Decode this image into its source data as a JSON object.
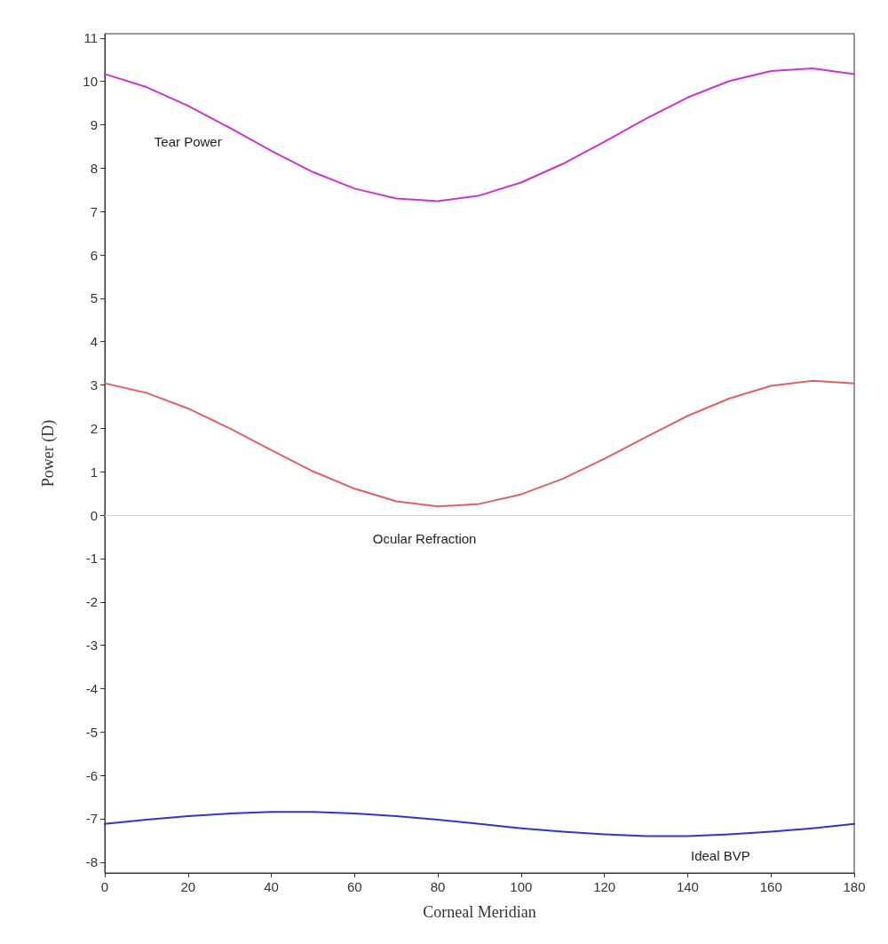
{
  "chart_data": {
    "type": "line",
    "xlabel": "Corneal Meridian",
    "ylabel": "Power (D)",
    "x": [
      0,
      10,
      20,
      30,
      40,
      50,
      60,
      70,
      80,
      90,
      100,
      110,
      120,
      130,
      140,
      150,
      160,
      170,
      180
    ],
    "series": [
      {
        "name": "Tear Power",
        "color": "#cc33cc",
        "values": [
          10.17,
          9.87,
          9.44,
          8.93,
          8.4,
          7.91,
          7.53,
          7.3,
          7.24,
          7.37,
          7.67,
          8.1,
          8.61,
          9.14,
          9.63,
          10.01,
          10.24,
          10.3,
          10.17
        ]
      },
      {
        "name": "Ocular Refraction",
        "color": "#e06060",
        "values": [
          3.04,
          2.82,
          2.46,
          2.0,
          1.5,
          1.01,
          0.61,
          0.32,
          0.2,
          0.26,
          0.48,
          0.84,
          1.3,
          1.8,
          2.29,
          2.69,
          2.98,
          3.1,
          3.04
        ]
      },
      {
        "name": "Ideal BVP",
        "color": "#3333cc",
        "values": [
          -7.12,
          -7.02,
          -6.94,
          -6.88,
          -6.84,
          -6.84,
          -6.88,
          -6.94,
          -7.02,
          -7.12,
          -7.22,
          -7.3,
          -7.36,
          -7.4,
          -7.4,
          -7.36,
          -7.3,
          -7.22,
          -7.12
        ]
      }
    ],
    "ref_lines": [
      {
        "axis": "y",
        "value": 0,
        "color": "#d0d0d0"
      }
    ],
    "xlim": [
      0,
      180
    ],
    "xticks": [
      0,
      20,
      40,
      60,
      80,
      100,
      120,
      140,
      160,
      180
    ],
    "ylim": [
      -8.25,
      11.1
    ],
    "yticks": [
      -8,
      -7,
      -6,
      -5,
      -4,
      -3,
      -2,
      -1,
      0,
      1,
      2,
      3,
      4,
      5,
      6,
      7,
      8,
      9,
      10,
      11
    ],
    "grid": false,
    "marker": "none",
    "line_style": "solid"
  }
}
